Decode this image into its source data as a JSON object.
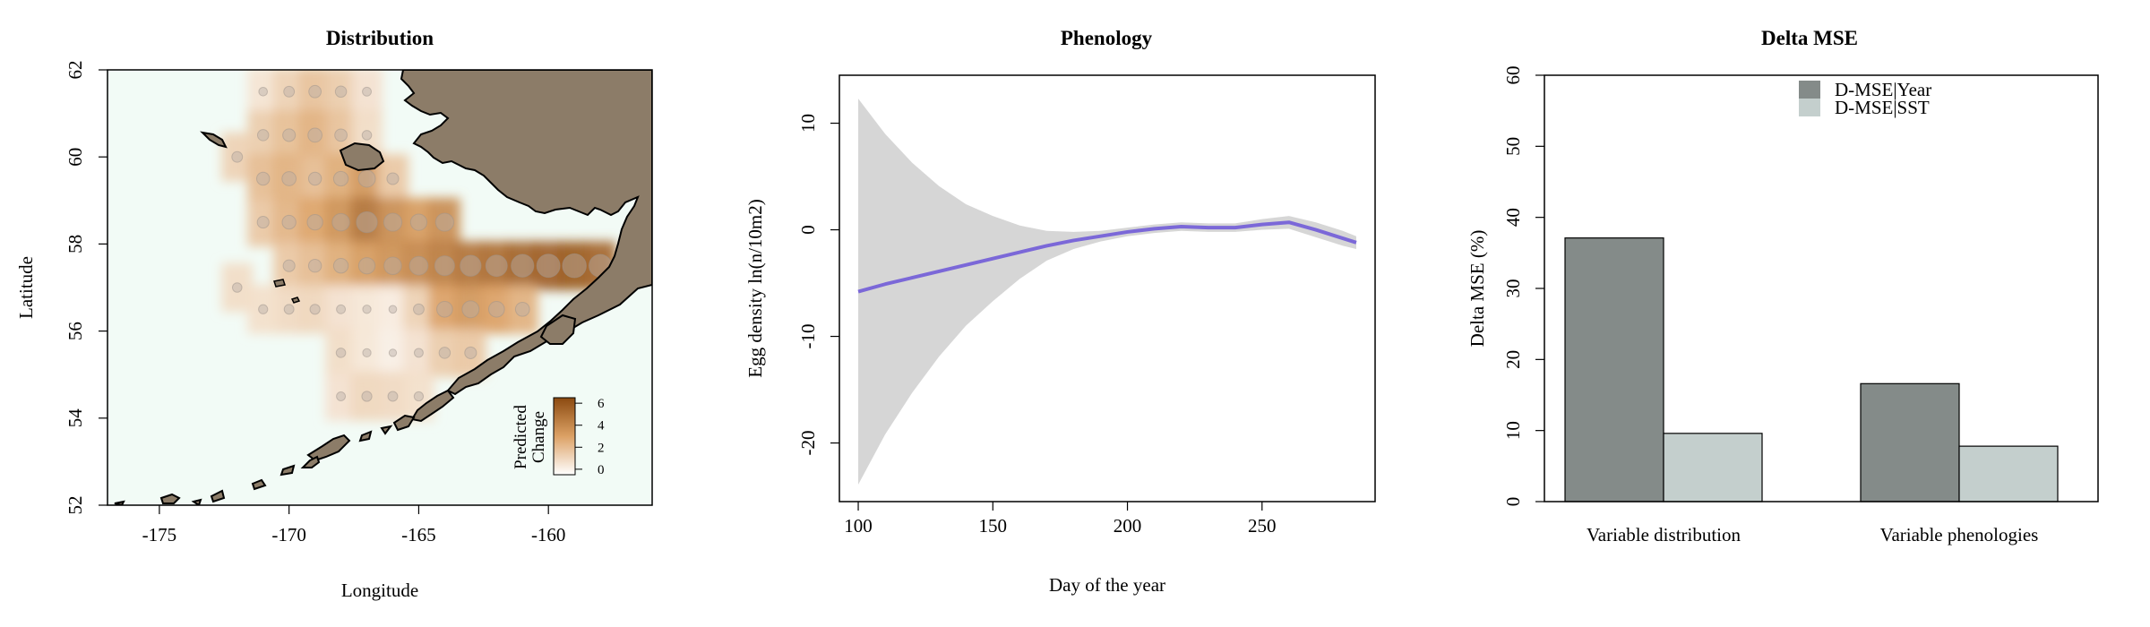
{
  "chart_data": [
    {
      "type": "heatmap",
      "title": "Distribution",
      "xlabel": "Longitude",
      "ylabel": "Latitude",
      "xlim": [
        -177,
        -156
      ],
      "ylim": [
        52,
        62
      ],
      "xticks": [
        -175,
        -170,
        -165,
        -160
      ],
      "yticks": [
        52,
        54,
        56,
        58,
        60,
        62
      ],
      "legend": {
        "title_line1": "Predicted",
        "title_line2": "Change",
        "ticks": [
          0,
          2,
          4,
          6
        ],
        "range": [
          -0.5,
          6.5
        ],
        "placement": "bottom-right",
        "low_color": "#ffffff",
        "high_color": "#8b4a10"
      },
      "colors": {
        "water": "#f2fbf6",
        "land": "#8c7c68",
        "coast": "#000000"
      },
      "cells_note_units": "lon,lat,value",
      "cells": [
        [
          -171,
          61.5,
          0.5
        ],
        [
          -170,
          61.5,
          1.2
        ],
        [
          -169,
          61.5,
          1.8
        ],
        [
          -168,
          61.5,
          1.4
        ],
        [
          -167,
          61.5,
          0.6
        ],
        [
          -171,
          60.5,
          1.4
        ],
        [
          -170,
          60.5,
          1.9
        ],
        [
          -169,
          60.5,
          2.4
        ],
        [
          -168,
          60.5,
          1.8
        ],
        [
          -167,
          60.5,
          0.8
        ],
        [
          -172,
          60,
          1.2
        ],
        [
          -171,
          59.5,
          2.0
        ],
        [
          -170,
          59.5,
          2.4
        ],
        [
          -169,
          59.5,
          2.0
        ],
        [
          -168,
          59.5,
          2.6
        ],
        [
          -167,
          59.5,
          3.4
        ],
        [
          -166,
          59.5,
          1.6
        ],
        [
          -171,
          58.5,
          1.6
        ],
        [
          -170,
          58.5,
          2.3
        ],
        [
          -169,
          58.5,
          2.9
        ],
        [
          -168,
          58.5,
          3.6
        ],
        [
          -167,
          58.5,
          4.8
        ],
        [
          -166,
          58.5,
          3.8
        ],
        [
          -165,
          58.5,
          3.2
        ],
        [
          -164,
          58.5,
          3.8
        ],
        [
          -170,
          57.5,
          1.6
        ],
        [
          -169,
          57.5,
          2.0
        ],
        [
          -168,
          57.5,
          2.6
        ],
        [
          -167,
          57.5,
          3.2
        ],
        [
          -166,
          57.5,
          3.6
        ],
        [
          -165,
          57.5,
          4.0
        ],
        [
          -164,
          57.5,
          4.4
        ],
        [
          -163,
          57.5,
          4.8
        ],
        [
          -162,
          57.5,
          5.0
        ],
        [
          -161,
          57.5,
          5.4
        ],
        [
          -160,
          57.5,
          5.6
        ],
        [
          -159,
          57.5,
          5.8
        ],
        [
          -158,
          57.5,
          5.4
        ],
        [
          -170,
          56.5,
          0.9
        ],
        [
          -169,
          56.5,
          1.0
        ],
        [
          -168,
          56.5,
          0.6
        ],
        [
          -167,
          56.5,
          0.4
        ],
        [
          -166,
          56.5,
          0.2
        ],
        [
          -165,
          56.5,
          1.2
        ],
        [
          -164,
          56.5,
          3.0
        ],
        [
          -163,
          56.5,
          3.4
        ],
        [
          -162,
          56.5,
          3.0
        ],
        [
          -161,
          56.5,
          2.4
        ],
        [
          -168,
          55.5,
          0.8
        ],
        [
          -167,
          55.5,
          0.4
        ],
        [
          -166,
          55.5,
          0.1
        ],
        [
          -165,
          55.5,
          0.6
        ],
        [
          -164,
          55.5,
          1.4
        ],
        [
          -163,
          55.5,
          1.6
        ],
        [
          -168,
          54.5,
          0.6
        ],
        [
          -167,
          54.5,
          1.0
        ],
        [
          -166,
          54.5,
          0.9
        ],
        [
          -165,
          54.5,
          0.7
        ],
        [
          -172,
          57,
          0.8
        ],
        [
          -171,
          56.5,
          0.7
        ]
      ]
    },
    {
      "type": "line",
      "title": "Phenology",
      "xlabel": "Day of the year",
      "ylabel": "Egg density ln(n/10m2)",
      "xlim": [
        93,
        292
      ],
      "ylim": [
        -25.5,
        14.5
      ],
      "xticks": [
        100,
        150,
        200,
        250
      ],
      "yticks": [
        -20,
        -10,
        0,
        10
      ],
      "line_color": "#7b68d8",
      "band_color": "#d6d6d6",
      "series": [
        {
          "x": [
            100,
            110,
            120,
            130,
            140,
            150,
            160,
            170,
            180,
            190,
            200,
            210,
            220,
            230,
            240,
            250,
            260,
            270,
            280,
            285
          ],
          "fit": [
            -5.8,
            -5.1,
            -4.5,
            -3.9,
            -3.3,
            -2.7,
            -2.1,
            -1.5,
            -1.0,
            -0.6,
            -0.2,
            0.1,
            0.3,
            0.2,
            0.2,
            0.5,
            0.7,
            0.0,
            -0.8,
            -1.2
          ],
          "upper": [
            12.3,
            9.0,
            6.3,
            4.1,
            2.4,
            1.3,
            0.4,
            -0.1,
            -0.2,
            -0.1,
            0.2,
            0.5,
            0.7,
            0.6,
            0.6,
            1.0,
            1.3,
            0.7,
            -0.1,
            -0.6
          ],
          "lower": [
            -23.9,
            -19.2,
            -15.3,
            -11.9,
            -9.0,
            -6.7,
            -4.6,
            -2.9,
            -1.8,
            -1.1,
            -0.6,
            -0.3,
            -0.1,
            -0.2,
            -0.2,
            0.0,
            0.1,
            -0.7,
            -1.5,
            -1.8
          ]
        }
      ]
    },
    {
      "type": "bar",
      "title": "Delta MSE",
      "xlabel": "",
      "ylabel": "Delta MSE (%)",
      "ylim": [
        0,
        60
      ],
      "yticks": [
        0,
        10,
        20,
        30,
        40,
        50,
        60
      ],
      "categories": [
        "Variable distribution",
        "Variable phenologies"
      ],
      "legend_placement": "top-center",
      "series": [
        {
          "name": "D-MSE|Year",
          "color": "#848b89",
          "values": [
            37.1,
            16.6
          ]
        },
        {
          "name": "D-MSE|SST",
          "color": "#c4cfcd",
          "values": [
            9.6,
            7.8
          ]
        }
      ]
    }
  ]
}
